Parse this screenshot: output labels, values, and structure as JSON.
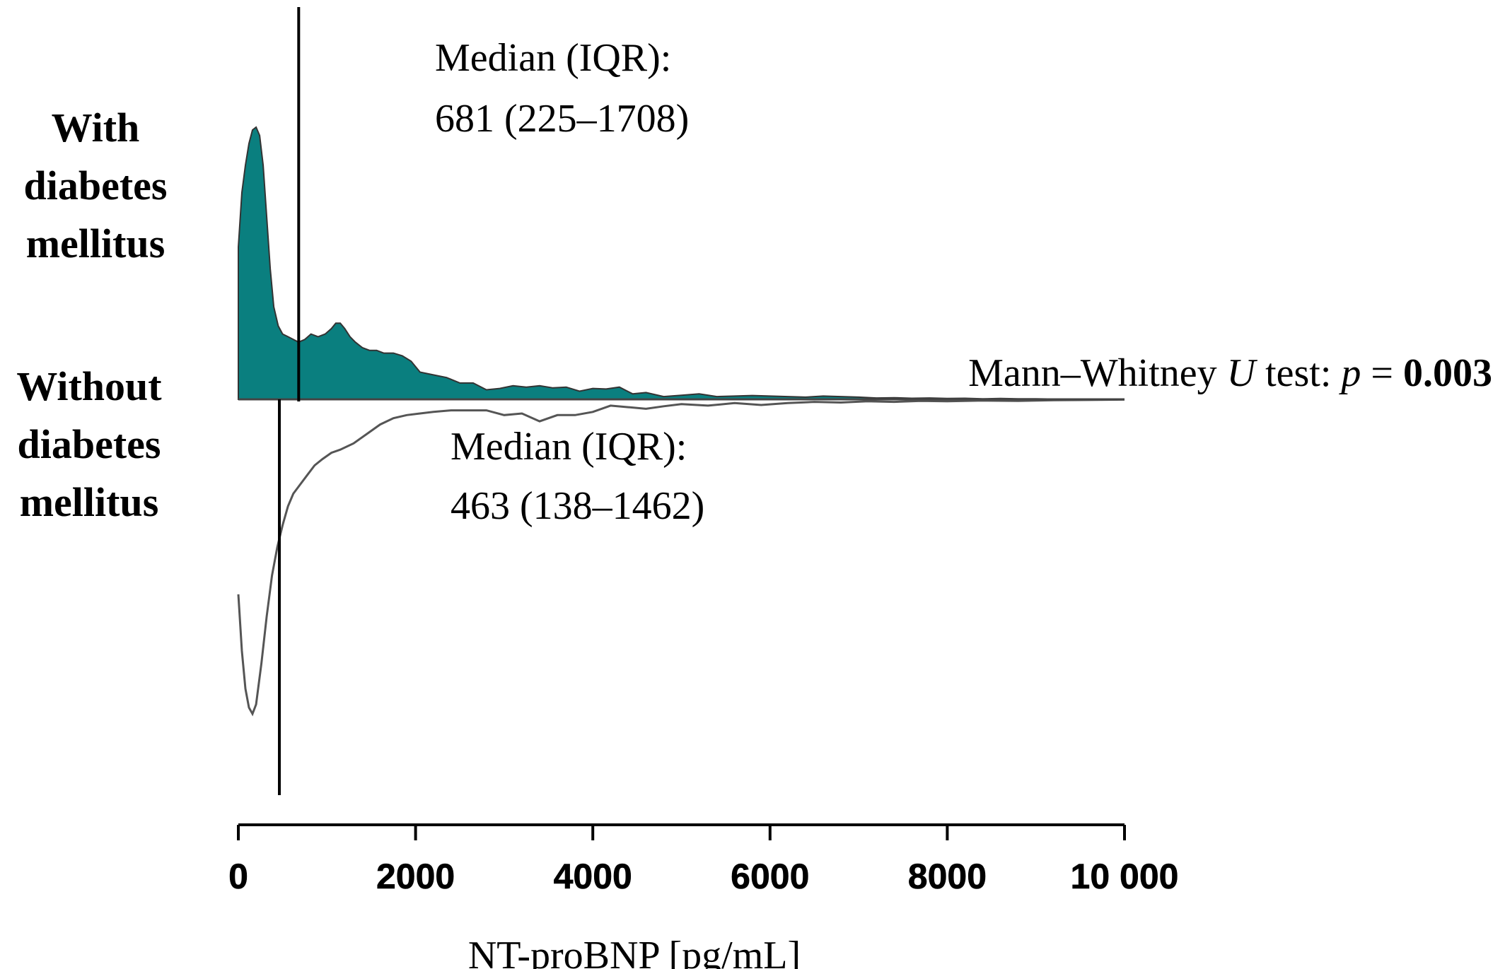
{
  "chart_data": {
    "type": "area",
    "title": "",
    "xlabel": "NT-proBNP [pg/mL]",
    "ylabel": "",
    "xlim": [
      0,
      10000
    ],
    "x_ticks": [
      0,
      2000,
      4000,
      6000,
      8000,
      10000
    ],
    "x_tick_labels": [
      "0",
      "2000",
      "4000",
      "6000",
      "8000",
      "10 000"
    ],
    "grid": false,
    "colors": {
      "with_fill": "#0a7f7f",
      "without_line": "#555555",
      "median_line": "#000000"
    },
    "groups": {
      "with": {
        "label_lines": [
          "With",
          "diabetes",
          "mellitus"
        ]
      },
      "without": {
        "label_lines": [
          "Without",
          "diabetes",
          "mellitus"
        ]
      }
    },
    "series": [
      {
        "group": "with",
        "style": "filled-above",
        "x": [
          0,
          40,
          80,
          120,
          160,
          200,
          240,
          280,
          320,
          360,
          400,
          450,
          500,
          560,
          620,
          680,
          750,
          820,
          900,
          980,
          1050,
          1100,
          1150,
          1200,
          1260,
          1320,
          1400,
          1480,
          1560,
          1640,
          1750,
          1850,
          1950,
          2050,
          2200,
          2350,
          2500,
          2650,
          2800,
          2950,
          3100,
          3250,
          3400,
          3550,
          3700,
          3850,
          4000,
          4150,
          4300,
          4450,
          4600,
          4800,
          5000,
          5200,
          5400,
          5600,
          5800,
          6000,
          6200,
          6400,
          6600,
          6800,
          7000,
          7200,
          7400,
          7600,
          7800,
          8000,
          8200,
          8400,
          8600,
          8800,
          9000,
          9200,
          9400,
          9600,
          9800,
          10000
        ],
        "density": [
          0.56,
          0.76,
          0.86,
          0.94,
          0.99,
          1.0,
          0.97,
          0.86,
          0.67,
          0.48,
          0.34,
          0.27,
          0.24,
          0.23,
          0.22,
          0.21,
          0.22,
          0.24,
          0.23,
          0.24,
          0.26,
          0.28,
          0.28,
          0.26,
          0.23,
          0.21,
          0.19,
          0.18,
          0.18,
          0.17,
          0.17,
          0.16,
          0.14,
          0.1,
          0.09,
          0.08,
          0.06,
          0.06,
          0.035,
          0.04,
          0.05,
          0.045,
          0.05,
          0.042,
          0.045,
          0.03,
          0.04,
          0.038,
          0.045,
          0.02,
          0.025,
          0.01,
          0.015,
          0.02,
          0.01,
          0.012,
          0.014,
          0.012,
          0.01,
          0.008,
          0.012,
          0.01,
          0.008,
          0.005,
          0.006,
          0.004,
          0.005,
          0.003,
          0.004,
          0.002,
          0.003,
          0.002,
          0.002,
          0.001,
          0.001,
          0.001,
          0.0,
          0.0
        ]
      },
      {
        "group": "without",
        "style": "line-below",
        "x": [
          0,
          40,
          80,
          120,
          160,
          200,
          260,
          320,
          380,
          440,
          500,
          560,
          620,
          700,
          780,
          860,
          950,
          1050,
          1150,
          1300,
          1450,
          1600,
          1750,
          1900,
          2050,
          2200,
          2400,
          2600,
          2800,
          3000,
          3200,
          3400,
          3600,
          3800,
          4000,
          4200,
          4400,
          4600,
          4800,
          5000,
          5300,
          5600,
          5900,
          6200,
          6500,
          6800,
          7100,
          7400,
          7700,
          8000,
          8400,
          8800,
          9200,
          9600,
          10000
        ],
        "density": [
          0.62,
          0.8,
          0.92,
          0.98,
          1.0,
          0.97,
          0.84,
          0.69,
          0.56,
          0.47,
          0.4,
          0.34,
          0.3,
          0.27,
          0.24,
          0.21,
          0.19,
          0.17,
          0.16,
          0.14,
          0.11,
          0.08,
          0.06,
          0.05,
          0.045,
          0.04,
          0.035,
          0.035,
          0.035,
          0.05,
          0.045,
          0.07,
          0.05,
          0.05,
          0.04,
          0.02,
          0.025,
          0.03,
          0.022,
          0.015,
          0.02,
          0.012,
          0.018,
          0.012,
          0.008,
          0.01,
          0.006,
          0.008,
          0.005,
          0.006,
          0.004,
          0.005,
          0.003,
          0.002,
          0.001
        ]
      }
    ],
    "medians": [
      {
        "group": "with",
        "value": 681,
        "label_line1": "Median (IQR):",
        "label_line2": "681 (225–1708)"
      },
      {
        "group": "without",
        "value": 463,
        "label_line1": "Median (IQR):",
        "label_line2": "463 (138–1462)"
      }
    ],
    "test": {
      "prefix": "Mann–Whitney ",
      "u": "U",
      "middle": " test: ",
      "p": "p",
      "equals": " = ",
      "value": "0.003"
    }
  }
}
